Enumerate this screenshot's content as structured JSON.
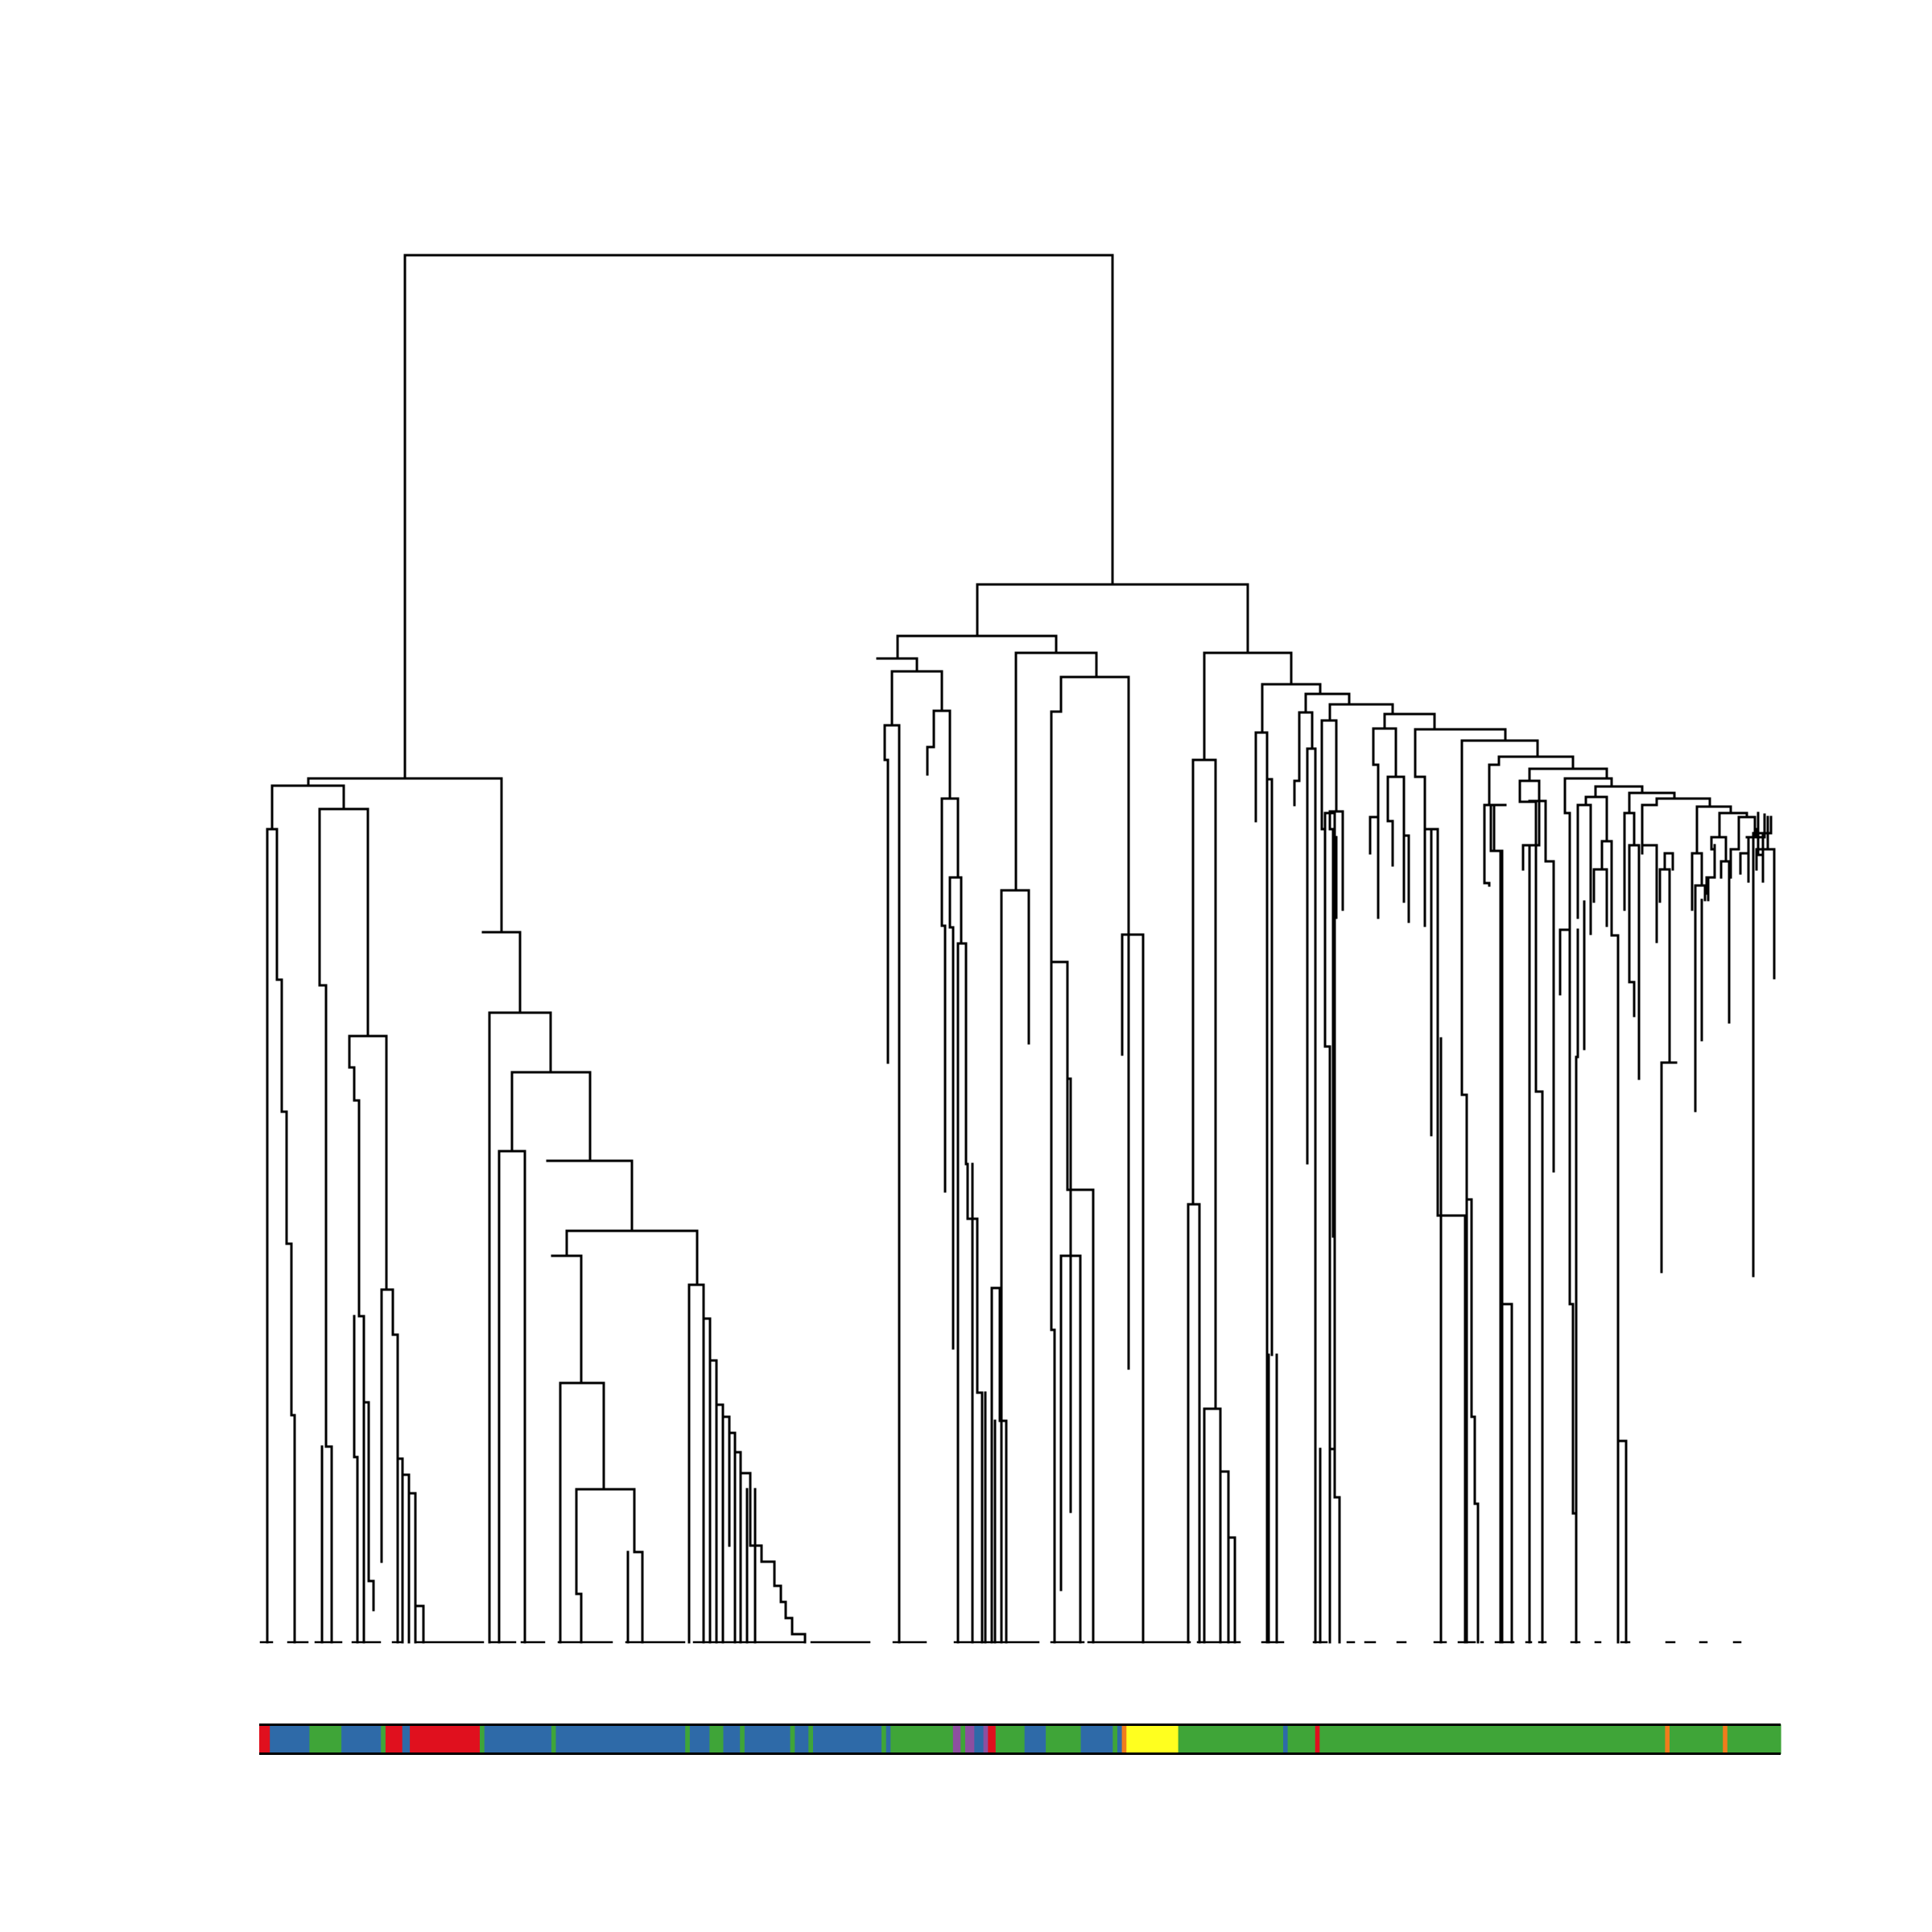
{
  "figure": {
    "type": "dendrogram",
    "annotation_bar_palette": {
      "red": "#e0101e",
      "blue": "#2e6aa8",
      "green": "#3fa538",
      "purple": "#8d4fa0",
      "yellow": "#ffff1f",
      "orange": "#f07c1c"
    },
    "annotation_segments": [
      {
        "span": [
          0.0,
          0.7
        ],
        "color": "red"
      },
      {
        "span": [
          0.7,
          3.3
        ],
        "color": "blue"
      },
      {
        "span": [
          3.3,
          5.4
        ],
        "color": "green"
      },
      {
        "span": [
          5.4,
          8.0
        ],
        "color": "blue"
      },
      {
        "span": [
          8.0,
          8.3
        ],
        "color": "green"
      },
      {
        "span": [
          8.3,
          9.4
        ],
        "color": "red"
      },
      {
        "span": [
          9.4,
          9.9
        ],
        "color": "blue"
      },
      {
        "span": [
          9.9,
          14.5
        ],
        "color": "red"
      },
      {
        "span": [
          14.5,
          14.8
        ],
        "color": "green"
      },
      {
        "span": [
          14.8,
          19.2
        ],
        "color": "blue"
      },
      {
        "span": [
          19.2,
          19.5
        ],
        "color": "green"
      },
      {
        "span": [
          19.5,
          28.0
        ],
        "color": "blue"
      },
      {
        "span": [
          28.0,
          28.3
        ],
        "color": "green"
      },
      {
        "span": [
          28.3,
          29.6
        ],
        "color": "blue"
      },
      {
        "span": [
          29.6,
          30.5
        ],
        "color": "green"
      },
      {
        "span": [
          30.5,
          31.6
        ],
        "color": "blue"
      },
      {
        "span": [
          31.6,
          31.9
        ],
        "color": "green"
      },
      {
        "span": [
          31.9,
          34.9
        ],
        "color": "blue"
      },
      {
        "span": [
          34.9,
          35.2
        ],
        "color": "green"
      },
      {
        "span": [
          35.2,
          36.1
        ],
        "color": "blue"
      },
      {
        "span": [
          36.1,
          36.4
        ],
        "color": "green"
      },
      {
        "span": [
          36.4,
          40.9
        ],
        "color": "blue"
      },
      {
        "span": [
          40.9,
          41.2
        ],
        "color": "green"
      },
      {
        "span": [
          41.2,
          41.5
        ],
        "color": "blue"
      },
      {
        "span": [
          41.5,
          45.6
        ],
        "color": "green"
      },
      {
        "span": [
          45.6,
          46.1
        ],
        "color": "purple"
      },
      {
        "span": [
          46.1,
          46.4
        ],
        "color": "green"
      },
      {
        "span": [
          46.4,
          47.0
        ],
        "color": "purple"
      },
      {
        "span": [
          47.0,
          47.6
        ],
        "color": "blue"
      },
      {
        "span": [
          47.6,
          47.9
        ],
        "color": "purple"
      },
      {
        "span": [
          47.9,
          48.4
        ],
        "color": "red"
      },
      {
        "span": [
          48.4,
          50.3
        ],
        "color": "green"
      },
      {
        "span": [
          50.3,
          51.7
        ],
        "color": "blue"
      },
      {
        "span": [
          51.7,
          54.0
        ],
        "color": "green"
      },
      {
        "span": [
          54.0,
          56.1
        ],
        "color": "blue"
      },
      {
        "span": [
          56.1,
          56.4
        ],
        "color": "green"
      },
      {
        "span": [
          56.4,
          56.7
        ],
        "color": "blue"
      },
      {
        "span": [
          56.7,
          57.0
        ],
        "color": "orange"
      },
      {
        "span": [
          57.0,
          60.4
        ],
        "color": "yellow"
      },
      {
        "span": [
          60.4,
          67.3
        ],
        "color": "green"
      },
      {
        "span": [
          67.3,
          67.6
        ],
        "color": "blue"
      },
      {
        "span": [
          67.6,
          69.4
        ],
        "color": "green"
      },
      {
        "span": [
          69.4,
          69.7
        ],
        "color": "red"
      },
      {
        "span": [
          69.7,
          92.4
        ],
        "color": "green"
      },
      {
        "span": [
          92.4,
          92.7
        ],
        "color": "orange"
      },
      {
        "span": [
          92.7,
          96.2
        ],
        "color": "green"
      },
      {
        "span": [
          96.2,
          96.5
        ],
        "color": "orange"
      },
      {
        "span": [
          96.5,
          100.0
        ],
        "color": "green"
      }
    ]
  }
}
